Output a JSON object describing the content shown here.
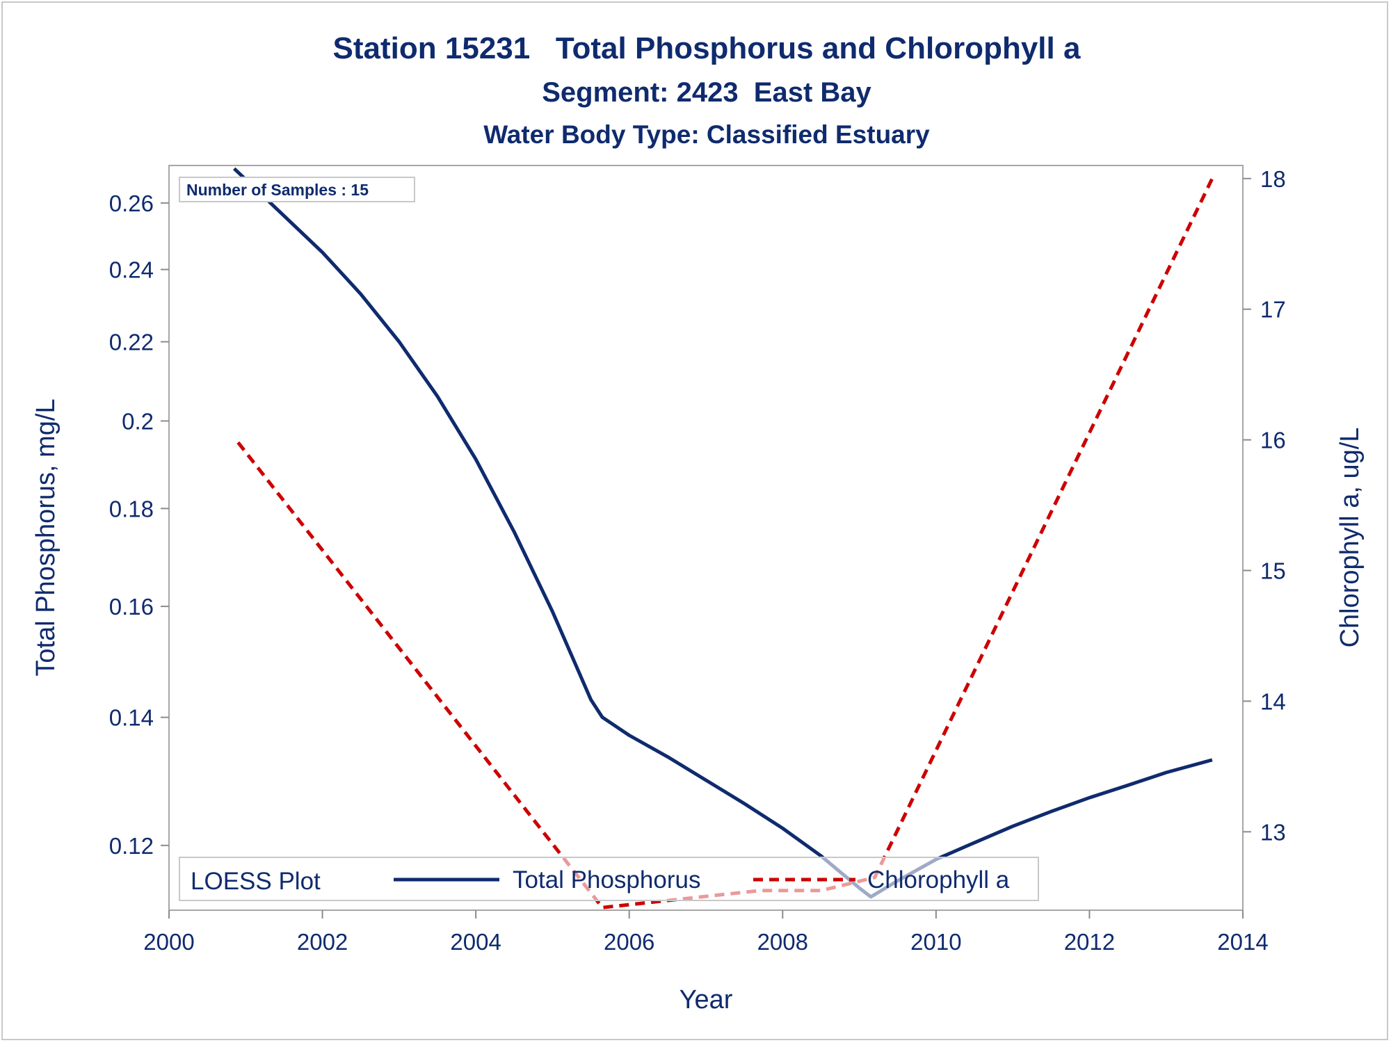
{
  "chart_data": {
    "type": "line",
    "title": "Station 15231   Total Phosphorus and Chlorophyll a",
    "subtitle": "Segment: 2423  East Bay",
    "subtitle2": "Water Body Type: Classified Estuary",
    "inset_label": "Number of Samples : 15",
    "xlabel": "Year",
    "ylabel": "Total Phosphorus, mg/L",
    "y2label": "Chlorophyll a, ug/L",
    "xlim": [
      2000,
      2014
    ],
    "ylim": [
      0.111,
      0.272
    ],
    "y_scale": "log",
    "y2lim": [
      12.4,
      18.1
    ],
    "x_ticks": [
      "2000",
      "2002",
      "2004",
      "2006",
      "2008",
      "2010",
      "2012",
      "2014"
    ],
    "y_ticks": [
      "0.12",
      "0.14",
      "0.16",
      "0.18",
      "0.2",
      "0.22",
      "0.24",
      "0.26"
    ],
    "y2_ticks": [
      "13",
      "14",
      "15",
      "16",
      "17",
      "18"
    ],
    "legend": {
      "title": "LOESS Plot",
      "placement": "bottom-inside",
      "entries": [
        "Total Phosphorus",
        "Chlorophyll a"
      ]
    },
    "series": [
      {
        "name": "Total Phosphorus",
        "axis": "left",
        "color": "#0f2b6e",
        "style": "solid",
        "points": [
          [
            2000.85,
            0.271
          ],
          [
            2001.5,
            0.256
          ],
          [
            2002.0,
            0.245
          ],
          [
            2002.5,
            0.233
          ],
          [
            2003.0,
            0.22
          ],
          [
            2003.5,
            0.206
          ],
          [
            2004.0,
            0.191
          ],
          [
            2004.5,
            0.175
          ],
          [
            2005.0,
            0.159
          ],
          [
            2005.5,
            0.143
          ],
          [
            2005.65,
            0.14
          ],
          [
            2006.0,
            0.137
          ],
          [
            2006.5,
            0.1335
          ],
          [
            2007.0,
            0.1298
          ],
          [
            2007.5,
            0.1262
          ],
          [
            2008.0,
            0.1225
          ],
          [
            2008.5,
            0.1185
          ],
          [
            2009.0,
            0.114
          ],
          [
            2009.15,
            0.1128
          ],
          [
            2009.5,
            0.115
          ],
          [
            2010.0,
            0.118
          ],
          [
            2010.5,
            0.1204
          ],
          [
            2011.0,
            0.1228
          ],
          [
            2011.5,
            0.125
          ],
          [
            2012.0,
            0.1271
          ],
          [
            2012.5,
            0.129
          ],
          [
            2013.0,
            0.131
          ],
          [
            2013.6,
            0.133
          ]
        ]
      },
      {
        "name": "Chlorophyll a",
        "axis": "right",
        "color": "#cc0000",
        "style": "dashed",
        "points": [
          [
            2000.9,
            15.98
          ],
          [
            2005.65,
            12.42
          ],
          [
            2007.7,
            12.55
          ],
          [
            2008.5,
            12.55
          ],
          [
            2009.2,
            12.65
          ],
          [
            2013.6,
            18.0
          ]
        ]
      }
    ]
  }
}
